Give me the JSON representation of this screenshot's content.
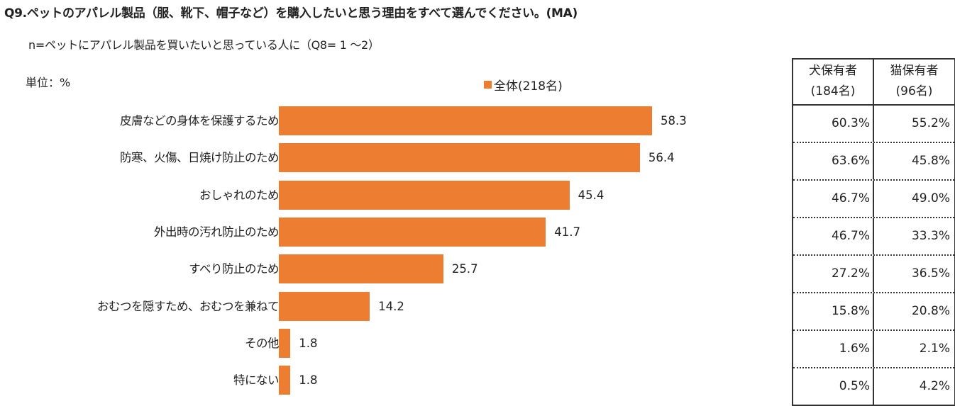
{
  "title": "Q9.ペットのアパレル製品（服、靴下、帽子など）を購入したいと思う理由をすべて選んでください。(MA)",
  "subtitle": "n=ペットにアパレル製品を買いたいと思っている人に（Q8= 1 ～2）",
  "unit_label": "単位：%",
  "colors": {
    "bar": "#ED7D31",
    "text": "#222222",
    "table_border": "#333333"
  },
  "chart_data": {
    "type": "bar",
    "orientation": "horizontal",
    "title": "Q9.ペットのアパレル製品（服、靴下、帽子など）を購入したいと思う理由をすべて選んでください。(MA)",
    "subtitle": "n=ペットにアパレル製品を買いたいと思っている人に（Q8= 1 ～2）",
    "unit": "%",
    "xlabel": "",
    "ylabel": "",
    "grid": false,
    "legend_position": "top",
    "categories": [
      "皮膚などの身体を保護するため",
      "防寒、火傷、日焼け防止のため",
      "おしゃれのため",
      "外出時の汚れ防止のため",
      "すべり防止のため",
      "おむつを隠すため、おむつを兼ねて",
      "その他",
      "特にない"
    ],
    "series": [
      {
        "name": "全体(218名)",
        "values": [
          58.3,
          56.4,
          45.4,
          41.7,
          25.7,
          14.2,
          1.8,
          1.8
        ]
      }
    ],
    "side_table": {
      "columns": [
        "犬保有者(184名)",
        "猫保有者(96名)"
      ],
      "rows": [
        [
          "60.3%",
          "55.2%"
        ],
        [
          "63.6%",
          "45.8%"
        ],
        [
          "46.7%",
          "49.0%"
        ],
        [
          "46.7%",
          "33.3%"
        ],
        [
          "27.2%",
          "36.5%"
        ],
        [
          "15.8%",
          "20.8%"
        ],
        [
          "1.6%",
          "2.1%"
        ],
        [
          "0.5%",
          "4.2%"
        ]
      ]
    }
  },
  "legend": {
    "label": "全体(218名)"
  },
  "rows": [
    {
      "label": "皮膚などの身体を保護するため",
      "value": "58.3",
      "dog": "60.3%",
      "cat": "55.2%"
    },
    {
      "label": "防寒、火傷、日焼け防止のため",
      "value": "56.4",
      "dog": "63.6%",
      "cat": "45.8%"
    },
    {
      "label": "おしゃれのため",
      "value": "45.4",
      "dog": "46.7%",
      "cat": "49.0%"
    },
    {
      "label": "外出時の汚れ防止のため",
      "value": "41.7",
      "dog": "46.7%",
      "cat": "33.3%"
    },
    {
      "label": "すべり防止のため",
      "value": "25.7",
      "dog": "27.2%",
      "cat": "36.5%"
    },
    {
      "label": "おむつを隠すため、おむつを兼ねて",
      "value": "14.2",
      "dog": "15.8%",
      "cat": "20.8%"
    },
    {
      "label": "その他",
      "value": "1.8",
      "dog": "1.6%",
      "cat": "2.1%"
    },
    {
      "label": "特にない",
      "value": "1.8",
      "dog": "0.5%",
      "cat": "4.2%"
    }
  ],
  "table": {
    "header_dog_line1": "犬保有者",
    "header_dog_line2": "(184名)",
    "header_cat_line1": "猫保有者",
    "header_cat_line2": "(96名)"
  }
}
